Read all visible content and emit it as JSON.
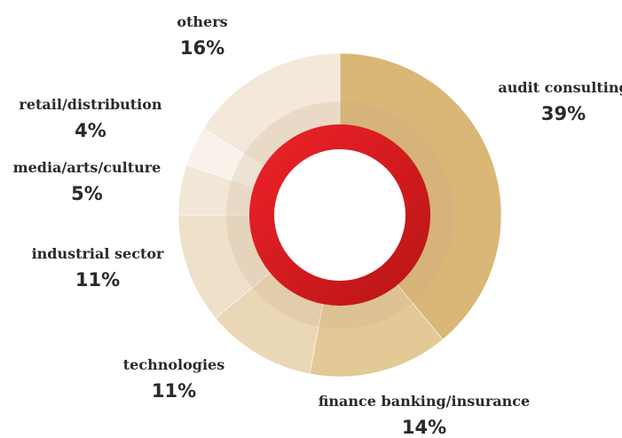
{
  "chart_data": {
    "type": "pie",
    "variant": "donut",
    "categories": [
      "audit consulting",
      "finance banking/insurance",
      "technologies",
      "industrial sector",
      "media/arts/culture",
      "retail/distribution",
      "others"
    ],
    "values": [
      39,
      14,
      11,
      11,
      5,
      4,
      16
    ],
    "value_labels": [
      "39%",
      "14%",
      "11%",
      "11%",
      "5%",
      "4%",
      "16%"
    ],
    "colors": [
      "#d9b777",
      "#e3c996",
      "#ead7b5",
      "#eee0c9",
      "#f2e7d7",
      "#f9f2ea",
      "#f3e8d9"
    ],
    "ring_colors": [
      "#d01f1f",
      "#c01515"
    ],
    "legend": "none",
    "start_angle": "12 o'clock",
    "direction": "clockwise"
  }
}
